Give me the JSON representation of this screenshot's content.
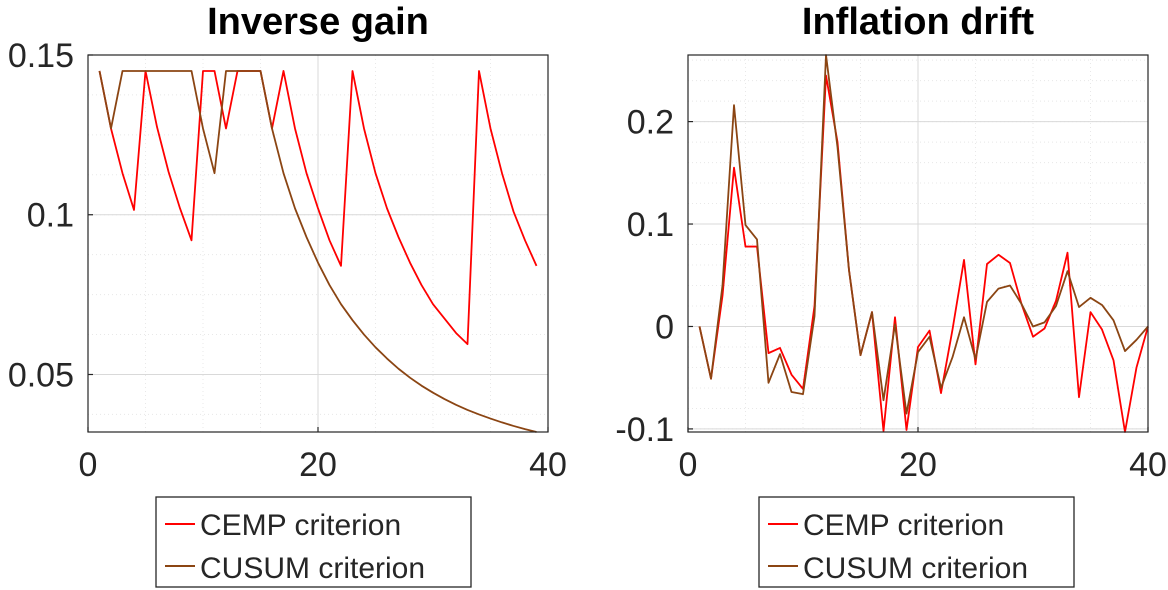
{
  "colors": {
    "cemp": "#ff0000",
    "cusum": "#8b4513",
    "axis": "#262626",
    "grid": "#d9d9d9",
    "minor_grid": "#e8e8e8"
  },
  "chart_data": [
    {
      "type": "line",
      "title": "Inverse gain",
      "xlabel": "",
      "ylabel": "",
      "xlim": [
        0,
        40
      ],
      "ylim": [
        0.032,
        0.15
      ],
      "xticks": [
        0,
        20,
        40
      ],
      "xtick_labels": [
        "0",
        "20",
        "40"
      ],
      "yticks": [
        0.05,
        0.1,
        0.15
      ],
      "ytick_labels": [
        "0.05",
        "0.1",
        "0.15"
      ],
      "grid": true,
      "legend": "below",
      "series": [
        {
          "name": "CEMP criterion",
          "color": "#ff0000",
          "x": [
            1,
            2,
            3,
            4,
            5,
            6,
            7,
            8,
            9,
            10,
            11,
            12,
            13,
            14,
            15,
            16,
            17,
            18,
            19,
            20,
            21,
            22,
            23,
            24,
            25,
            26,
            27,
            28,
            29,
            30,
            31,
            32,
            33,
            34,
            35,
            36,
            37,
            38,
            39
          ],
          "y": [
            0.145,
            0.127,
            0.113,
            0.1015,
            0.145,
            0.1275,
            0.1135,
            0.102,
            0.092,
            0.145,
            0.145,
            0.127,
            0.145,
            0.145,
            0.145,
            0.127,
            0.145,
            0.127,
            0.113,
            0.102,
            0.092,
            0.084,
            0.145,
            0.127,
            0.113,
            0.102,
            0.093,
            0.085,
            0.078,
            0.072,
            0.0675,
            0.063,
            0.0595,
            0.145,
            0.127,
            0.113,
            0.101,
            0.092,
            0.084
          ]
        },
        {
          "name": "CUSUM criterion",
          "color": "#8b4513",
          "x": [
            1,
            2,
            3,
            4,
            5,
            6,
            7,
            8,
            9,
            10,
            11,
            12,
            13,
            14,
            15,
            16,
            17,
            18,
            19,
            20,
            21,
            22,
            23,
            24,
            25,
            26,
            27,
            28,
            29,
            30,
            31,
            32,
            33,
            34,
            35,
            36,
            37,
            38,
            39
          ],
          "y": [
            0.145,
            0.127,
            0.145,
            0.145,
            0.145,
            0.145,
            0.145,
            0.145,
            0.145,
            0.127,
            0.113,
            0.145,
            0.145,
            0.145,
            0.145,
            0.127,
            0.113,
            0.102,
            0.093,
            0.085,
            0.078,
            0.072,
            0.067,
            0.0625,
            0.0585,
            0.055,
            0.0518,
            0.049,
            0.0465,
            0.0443,
            0.0423,
            0.0405,
            0.0389,
            0.0375,
            0.0362,
            0.035,
            0.0339,
            0.0329,
            0.032
          ]
        }
      ]
    },
    {
      "type": "line",
      "title": "Inflation drift",
      "xlabel": "",
      "ylabel": "",
      "xlim": [
        0,
        40
      ],
      "ylim": [
        -0.103,
        0.265
      ],
      "xticks": [
        0,
        20,
        40
      ],
      "xtick_labels": [
        "0",
        "20",
        "40"
      ],
      "yticks": [
        -0.1,
        0,
        0.1,
        0.2
      ],
      "ytick_labels": [
        "-0.1",
        "0",
        "0.1",
        "0.2"
      ],
      "grid": true,
      "legend": "below",
      "series": [
        {
          "name": "CEMP criterion",
          "color": "#ff0000",
          "x": [
            1,
            2,
            3,
            4,
            5,
            6,
            7,
            8,
            9,
            10,
            11,
            12,
            13,
            14,
            15,
            16,
            17,
            18,
            19,
            20,
            21,
            22,
            23,
            24,
            25,
            26,
            27,
            28,
            29,
            30,
            31,
            32,
            33,
            34,
            35,
            36,
            37,
            38,
            39,
            40
          ],
          "y": [
            0,
            -0.051,
            0.03,
            0.155,
            0.078,
            0.078,
            -0.026,
            -0.021,
            -0.047,
            -0.061,
            0.02,
            0.245,
            0.18,
            0.055,
            -0.028,
            0.014,
            -0.102,
            0.009,
            -0.101,
            -0.02,
            -0.004,
            -0.065,
            -0.003,
            0.065,
            -0.037,
            0.061,
            0.07,
            0.062,
            0.022,
            -0.01,
            -0.002,
            0.025,
            0.072,
            -0.069,
            0.014,
            -0.003,
            -0.033,
            -0.103,
            -0.04,
            0
          ]
        },
        {
          "name": "CUSUM criterion",
          "color": "#8b4513",
          "x": [
            1,
            2,
            3,
            4,
            5,
            6,
            7,
            8,
            9,
            10,
            11,
            12,
            13,
            14,
            15,
            16,
            17,
            18,
            19,
            20,
            21,
            22,
            23,
            24,
            25,
            26,
            27,
            28,
            29,
            30,
            31,
            32,
            33,
            34,
            35,
            36,
            37,
            38,
            39,
            40
          ],
          "y": [
            0,
            -0.051,
            0.04,
            0.216,
            0.099,
            0.085,
            -0.055,
            -0.027,
            -0.064,
            -0.066,
            0.01,
            0.265,
            0.175,
            0.055,
            -0.028,
            0.014,
            -0.072,
            0.002,
            -0.085,
            -0.025,
            -0.01,
            -0.06,
            -0.03,
            0.009,
            -0.032,
            0.024,
            0.037,
            0.04,
            0.022,
            0,
            0.004,
            0.02,
            0.054,
            0.019,
            0.028,
            0.021,
            0.006,
            -0.024,
            -0.013,
            0
          ]
        }
      ]
    }
  ]
}
